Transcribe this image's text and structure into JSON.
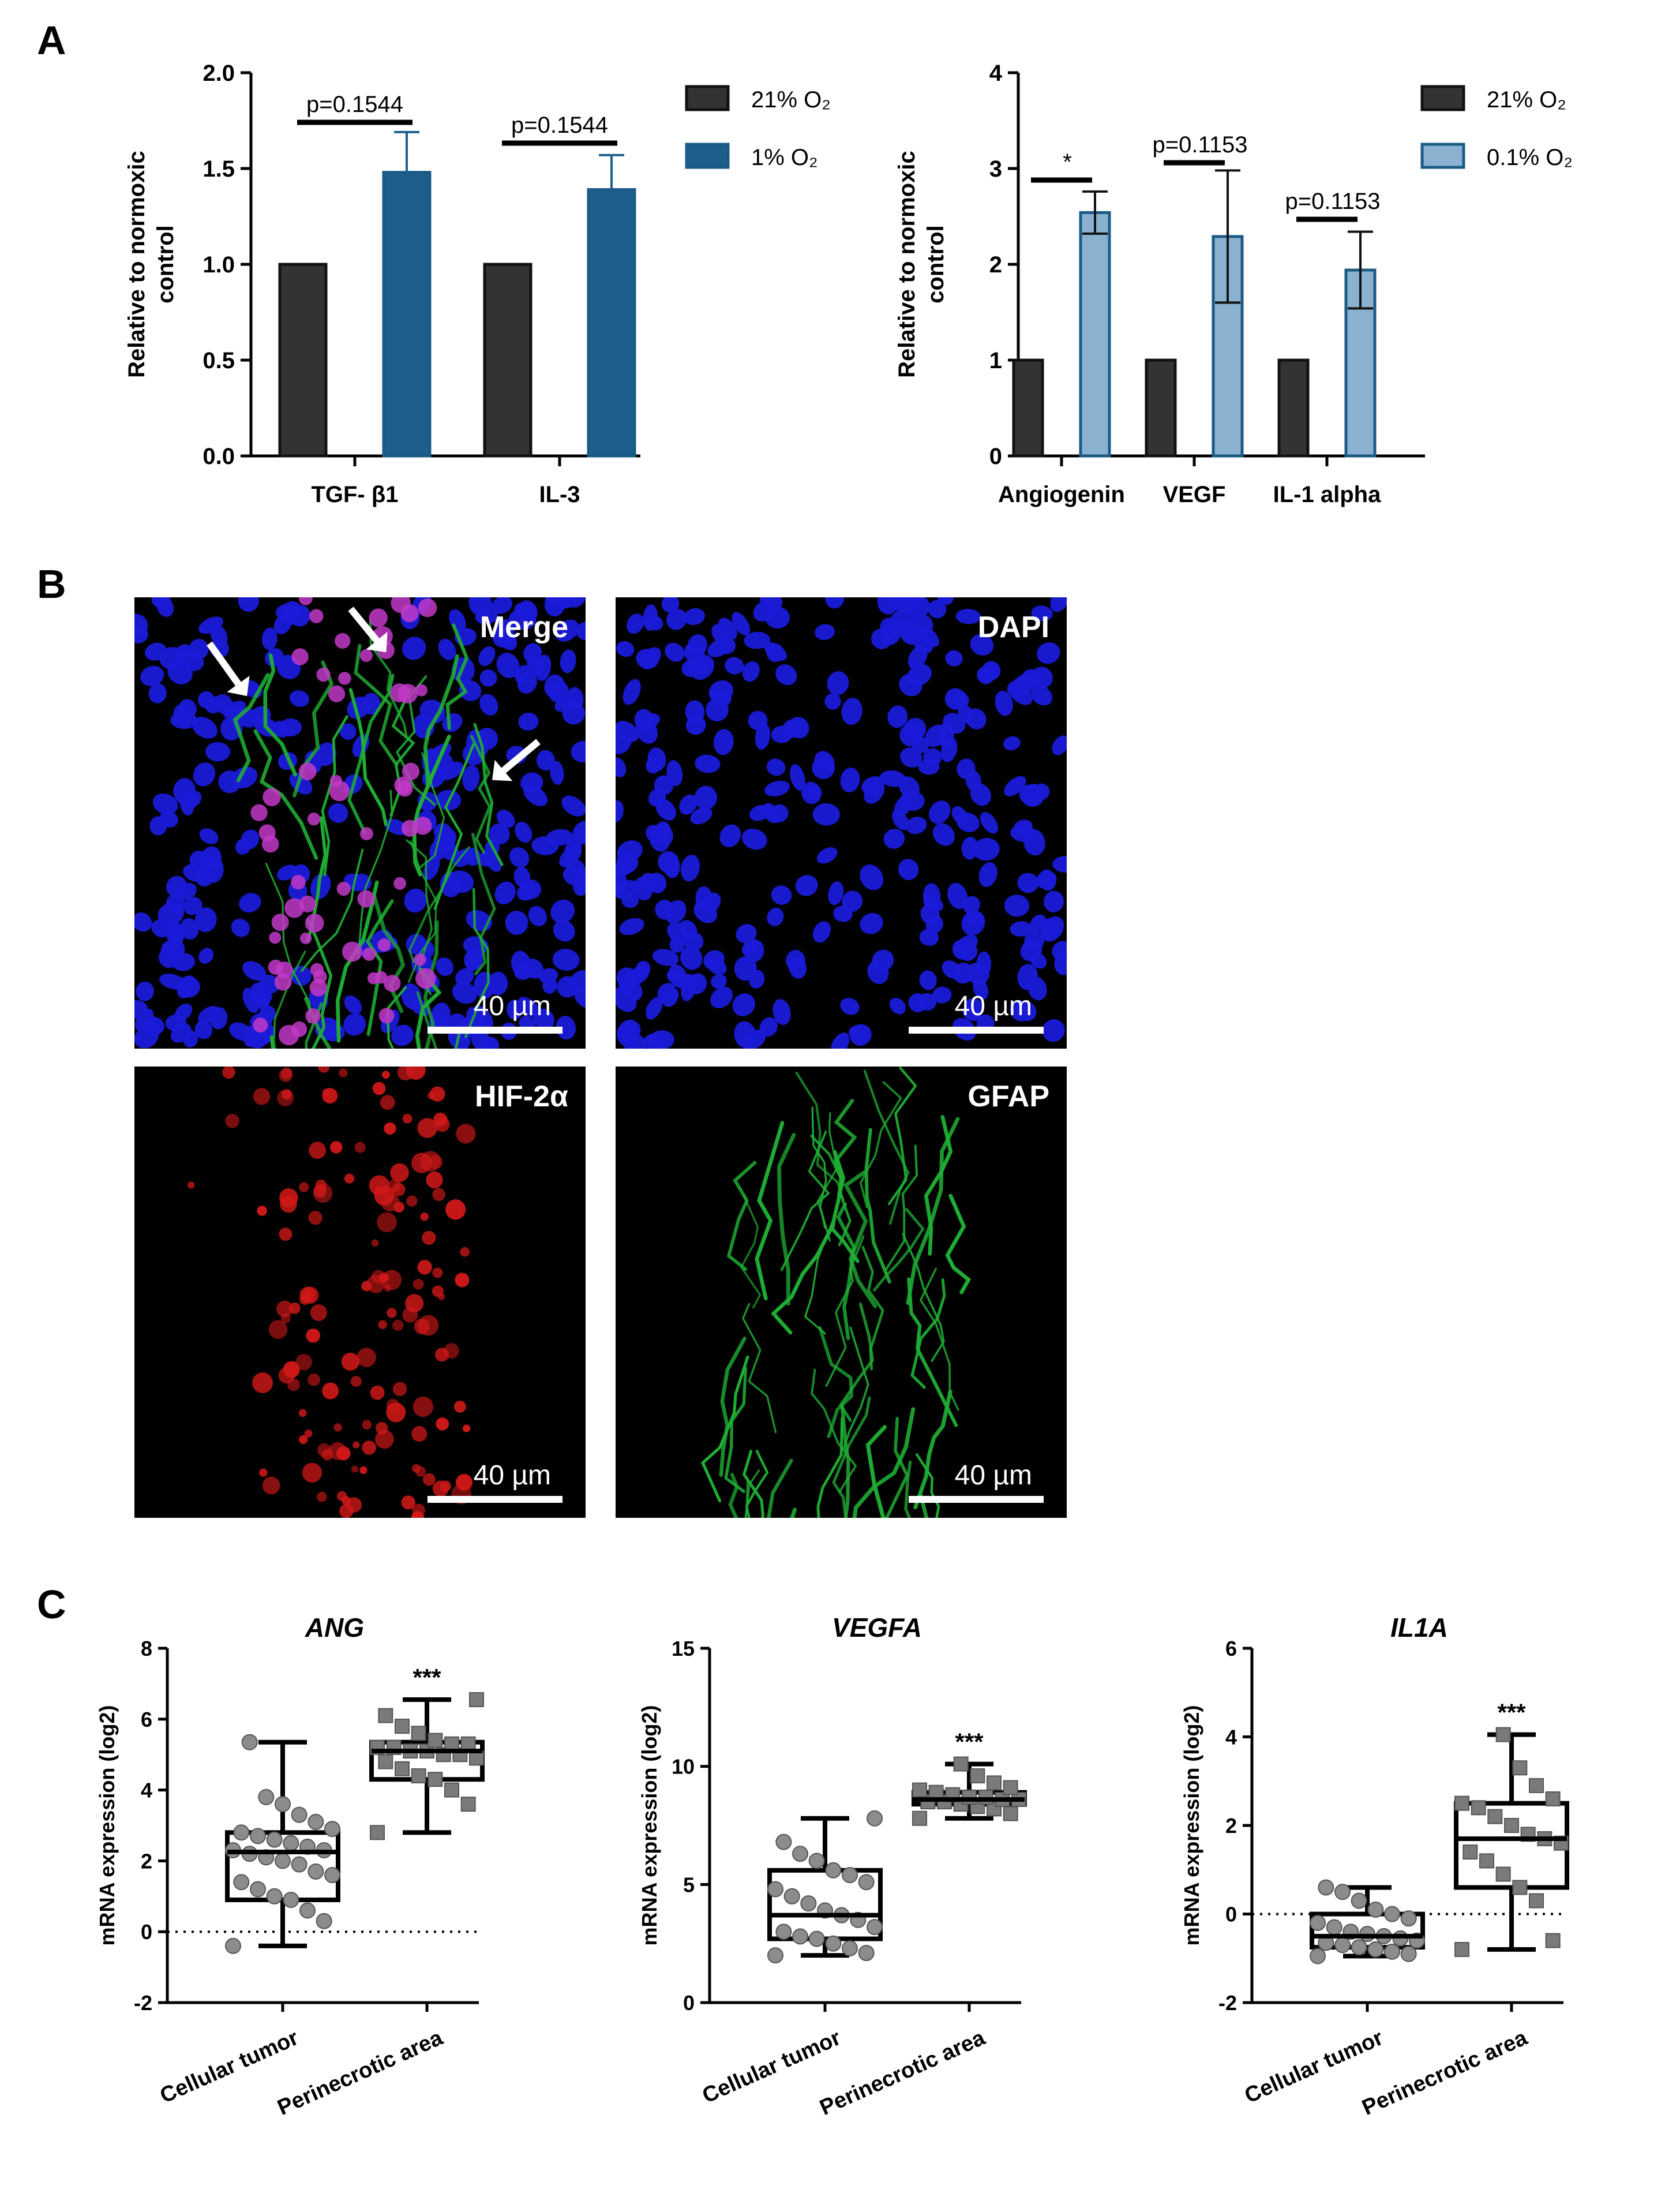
{
  "panels": {
    "a": "A",
    "b": "B",
    "c": "C"
  },
  "chart_data": [
    {
      "id": "a1",
      "type": "bar",
      "ylabel": "Relative to normoxic control",
      "ylim": [
        0,
        2.0
      ],
      "yticks": [
        "0.0",
        "0.5",
        "1.0",
        "1.5",
        "2.0"
      ],
      "ytick_values": [
        0,
        0.5,
        1.0,
        1.5,
        2.0
      ],
      "categories": [
        "TGF-  β1",
        "IL-3"
      ],
      "series": [
        {
          "name": "21% O₂",
          "color": "#333333",
          "values": [
            1.0,
            1.0
          ],
          "errors": [
            0,
            0
          ]
        },
        {
          "name": "1% O₂",
          "color": "#1d5f8a",
          "values": [
            1.48,
            1.39
          ],
          "errors": [
            0.21,
            0.18
          ]
        }
      ],
      "annotations": [
        "p=0.1544",
        "p=0.1544"
      ],
      "legend": "right"
    },
    {
      "id": "a2",
      "type": "bar",
      "ylabel": "Relative to normoxic control",
      "ylim": [
        0,
        4
      ],
      "yticks": [
        "0",
        "1",
        "2",
        "3",
        "4"
      ],
      "ytick_values": [
        0,
        1,
        2,
        3,
        4
      ],
      "categories": [
        "Angiogenin",
        "VEGF",
        "IL-1 alpha"
      ],
      "series": [
        {
          "name": "21% O₂",
          "color": "#333333",
          "values": [
            1.0,
            1.0,
            1.0
          ],
          "errors": [
            0,
            0,
            0
          ]
        },
        {
          "name": "0.1% O₂",
          "color": "#8ab2d0",
          "values": [
            2.54,
            2.29,
            1.94
          ],
          "errors": [
            0.22,
            0.69,
            0.4
          ]
        }
      ],
      "annotations": [
        "*",
        "p=0.1153",
        "p=0.1153"
      ],
      "legend": "right"
    },
    {
      "id": "c1",
      "type": "box",
      "title": "ANG",
      "ylabel": "mRNA expression (log2)",
      "ylim": [
        -2,
        8
      ],
      "yticks": [
        "-2",
        "0",
        "2",
        "4",
        "6",
        "8"
      ],
      "ytick_values": [
        -2,
        0,
        2,
        4,
        6,
        8
      ],
      "reference_line": 0,
      "categories": [
        "Cellular tumor",
        "Perinecrotic area"
      ],
      "boxes": [
        {
          "min": -0.4,
          "q1": 0.9,
          "median": 2.25,
          "q3": 2.8,
          "max": 5.35,
          "points": [
            -0.4,
            0.3,
            0.6,
            0.9,
            1.0,
            1.2,
            1.4,
            1.6,
            1.7,
            1.9,
            2.0,
            2.1,
            2.2,
            2.3,
            2.3,
            2.4,
            2.5,
            2.6,
            2.7,
            2.8,
            2.9,
            3.1,
            3.3,
            3.6,
            3.8,
            5.35
          ]
        },
        {
          "min": 2.8,
          "q1": 4.3,
          "median": 5.1,
          "q3": 5.35,
          "max": 6.55,
          "points": [
            2.8,
            3.6,
            4.0,
            4.3,
            4.4,
            4.6,
            4.8,
            4.9,
            5.0,
            5.0,
            5.1,
            5.1,
            5.2,
            5.2,
            5.3,
            5.3,
            5.4,
            5.6,
            5.8,
            6.1,
            6.55
          ]
        }
      ],
      "annotation": "***"
    },
    {
      "id": "c2",
      "type": "box",
      "title": "VEGFA",
      "ylabel": "mRNA expression (log2)",
      "ylim": [
        0,
        15
      ],
      "yticks": [
        "0",
        "5",
        "10",
        "15"
      ],
      "ytick_values": [
        0,
        5,
        10,
        15
      ],
      "categories": [
        "Cellular tumor",
        "Perinecrotic area"
      ],
      "boxes": [
        {
          "min": 2.0,
          "q1": 2.7,
          "median": 3.7,
          "q3": 5.6,
          "max": 7.8,
          "points": [
            2.0,
            2.1,
            2.3,
            2.5,
            2.7,
            2.8,
            3.0,
            3.2,
            3.5,
            3.7,
            3.9,
            4.2,
            4.5,
            4.8,
            5.1,
            5.4,
            5.6,
            6.0,
            6.3,
            6.8,
            7.8
          ]
        },
        {
          "min": 7.8,
          "q1": 8.4,
          "median": 8.6,
          "q3": 8.9,
          "max": 10.1,
          "points": [
            7.8,
            8.0,
            8.2,
            8.3,
            8.4,
            8.5,
            8.5,
            8.6,
            8.6,
            8.7,
            8.7,
            8.8,
            8.9,
            9.0,
            9.1,
            9.3,
            9.6,
            10.1
          ]
        }
      ],
      "annotation": "***"
    },
    {
      "id": "c3",
      "type": "box",
      "title": "IL1A",
      "ylabel": "mRNA expression (log2)",
      "ylim": [
        -2,
        6
      ],
      "yticks": [
        "-2",
        "0",
        "2",
        "4",
        "6"
      ],
      "ytick_values": [
        -2,
        0,
        2,
        4,
        6
      ],
      "reference_line": 0,
      "categories": [
        "Cellular tumor",
        "Perinecrotic area"
      ],
      "boxes": [
        {
          "min": -0.95,
          "q1": -0.75,
          "median": -0.5,
          "q3": 0.0,
          "max": 0.6,
          "points": [
            -0.95,
            -0.9,
            -0.85,
            -0.8,
            -0.75,
            -0.7,
            -0.65,
            -0.6,
            -0.55,
            -0.5,
            -0.45,
            -0.4,
            -0.3,
            -0.2,
            -0.1,
            0.0,
            0.1,
            0.3,
            0.5,
            0.6
          ]
        },
        {
          "min": -0.8,
          "q1": 0.6,
          "median": 1.7,
          "q3": 2.5,
          "max": 4.05,
          "points": [
            -0.8,
            -0.6,
            0.3,
            0.6,
            0.9,
            1.2,
            1.4,
            1.6,
            1.7,
            1.8,
            2.0,
            2.2,
            2.4,
            2.5,
            2.6,
            2.9,
            3.3,
            4.05
          ]
        }
      ],
      "annotation": "***"
    }
  ],
  "micrographs": [
    {
      "label": "Merge",
      "scale": "40 µm"
    },
    {
      "label": "DAPI",
      "scale": "40 µm"
    },
    {
      "label": "HIF-2α",
      "scale": "40 µm"
    },
    {
      "label": "GFAP",
      "scale": "40 µm"
    }
  ]
}
